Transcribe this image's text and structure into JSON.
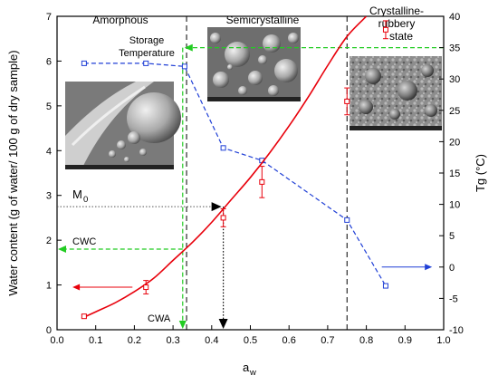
{
  "chart_data": {
    "type": "line",
    "xlabel_main": "a",
    "xlabel_sub": "w",
    "ylabel_left": "Water content (g of water/ 100 g of dry sample)",
    "ylabel_right": "Tg (°C)",
    "xlim": [
      0.0,
      1.0
    ],
    "ylim_left": [
      0,
      7
    ],
    "ylim_right": [
      -10,
      40
    ],
    "x_ticks": [
      "0.0",
      "0.1",
      "0.2",
      "0.3",
      "0.4",
      "0.5",
      "0.6",
      "0.7",
      "0.8",
      "0.9",
      "1.0"
    ],
    "y_left_ticks": [
      "0",
      "1",
      "2",
      "3",
      "4",
      "5",
      "6",
      "7"
    ],
    "y_right_ticks": [
      "-10",
      "-5",
      "0",
      "5",
      "10",
      "15",
      "20",
      "25",
      "30",
      "35",
      "40"
    ],
    "regions": {
      "amorphous": "Amorphous",
      "semicrystalline": "Semicrystalline",
      "crystalline_line1": "Crystalline-",
      "crystalline_line2": "rubbery",
      "crystalline_line3": "state"
    },
    "region_boundaries_aw": [
      0.335,
      0.75
    ],
    "annotations": {
      "storage_temp_line1": "Storage",
      "storage_temp_line2": "Temperature",
      "m0_main": "M",
      "m0_sub": "0",
      "cwc": "CWC",
      "cwa": "CWA"
    },
    "key_values": {
      "storage_temperature_c": 35,
      "cwa_aw": 0.325,
      "cwc_water_content": 1.8,
      "m0_water_content": 2.75,
      "m0_aw": 0.43
    },
    "series": [
      {
        "axis": "left",
        "color": "#e8000b",
        "style": "points-with-error",
        "points": [
          {
            "x": 0.07,
            "y": 0.3,
            "err": 0.03
          },
          {
            "x": 0.23,
            "y": 0.95,
            "err": 0.15
          },
          {
            "x": 0.43,
            "y": 2.5,
            "err": 0.2
          },
          {
            "x": 0.53,
            "y": 3.3,
            "err": 0.35
          },
          {
            "x": 0.75,
            "y": 5.1,
            "err": 0.3
          },
          {
            "x": 0.85,
            "y": 6.7,
            "err": 0.2
          }
        ]
      },
      {
        "axis": "left",
        "color": "#e8000b",
        "style": "fitted-curve",
        "x": [
          0.07,
          0.1,
          0.15,
          0.2,
          0.25,
          0.3,
          0.35,
          0.4,
          0.45,
          0.5,
          0.55,
          0.6,
          0.65,
          0.7,
          0.75,
          0.8
        ],
        "y": [
          0.28,
          0.4,
          0.6,
          0.85,
          1.15,
          1.55,
          1.95,
          2.4,
          2.9,
          3.4,
          3.95,
          4.55,
          5.2,
          5.9,
          6.55,
          7.0
        ]
      },
      {
        "axis": "right",
        "color": "#1f3fd6",
        "style": "dashed-squares",
        "x": [
          0.07,
          0.23,
          0.33,
          0.43,
          0.53,
          0.75,
          0.85
        ],
        "y": [
          32.5,
          32.5,
          32.0,
          19.0,
          17.0,
          7.5,
          -3.0
        ]
      }
    ],
    "grid": false
  },
  "micrographs": {
    "amorphous": "micrograph-amorphous",
    "semicrystalline": "micrograph-semicrystalline",
    "crystalline": "micrograph-crystalline"
  },
  "colors": {
    "sorption": "#e8000b",
    "tg": "#1f3fd6",
    "guide": "#22cc22"
  }
}
